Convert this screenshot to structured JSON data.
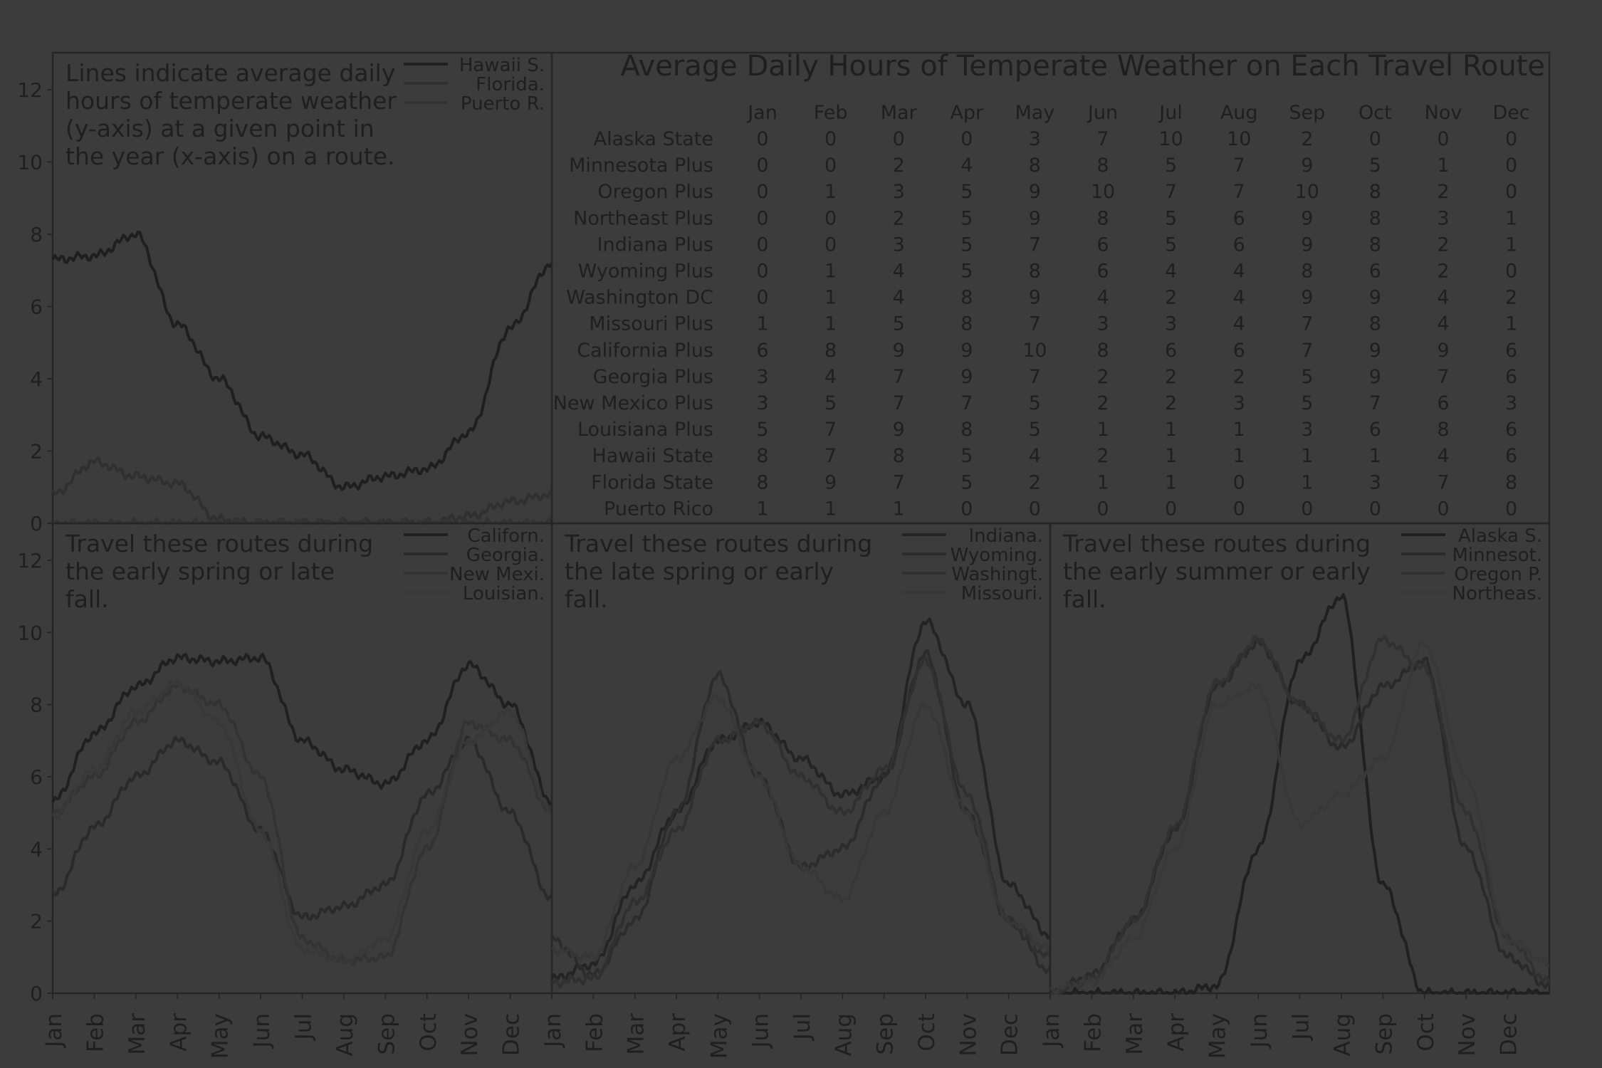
{
  "theme": {
    "background": "#3c3c3c",
    "line": "#262626",
    "text": "#1f1f1f",
    "grid": "#2a2a2a"
  },
  "months": [
    "Jan",
    "Feb",
    "Mar",
    "Apr",
    "May",
    "Jun",
    "Jul",
    "Aug",
    "Sep",
    "Oct",
    "Nov",
    "Dec"
  ],
  "chart_data": [
    {
      "type": "line",
      "panel": "top-left",
      "annotation": [
        "Lines indicate average daily",
        "hours of temperate weather",
        "(y-axis) at a given point in",
        "the year (x-axis) on a route."
      ],
      "ylim": [
        0,
        13
      ],
      "yticks": [
        0,
        2,
        4,
        6,
        8,
        10,
        12
      ],
      "legend_position": "top-right",
      "series": [
        {
          "name": "Hawaii S.",
          "color": "#1f1f1f",
          "monthly": [
            7.3,
            7.4,
            8.0,
            5.5,
            4.0,
            2.4,
            1.9,
            1.0,
            1.3,
            1.5,
            2.5,
            5.4,
            7.2
          ]
        },
        {
          "name": "Florida.",
          "color": "#303030",
          "monthly": [
            0.8,
            1.7,
            1.3,
            1.1,
            0.1,
            0.0,
            0.0,
            0.0,
            0.0,
            0.0,
            0.2,
            0.6,
            0.8
          ]
        },
        {
          "name": "Puerto R.",
          "color": "#333333",
          "monthly": [
            0.0,
            0.0,
            0.0,
            0.0,
            0.0,
            0.0,
            0.0,
            0.0,
            0.0,
            0.0,
            0.0,
            0.0,
            0.0
          ]
        }
      ]
    },
    {
      "type": "table",
      "panel": "top-right",
      "title": "Average Daily Hours of Temperate Weather on Each Travel Route",
      "columns": [
        "Jan",
        "Feb",
        "Mar",
        "Apr",
        "May",
        "Jun",
        "Jul",
        "Aug",
        "Sep",
        "Oct",
        "Nov",
        "Dec"
      ],
      "rows": [
        {
          "label": "Alaska State",
          "values": [
            0,
            0,
            0,
            0,
            3,
            7,
            10,
            10,
            2,
            0,
            0,
            0
          ]
        },
        {
          "label": "Minnesota Plus",
          "values": [
            0,
            0,
            2,
            4,
            8,
            8,
            5,
            7,
            9,
            5,
            1,
            0
          ]
        },
        {
          "label": "Oregon Plus",
          "values": [
            0,
            1,
            3,
            5,
            9,
            10,
            7,
            7,
            10,
            8,
            2,
            0
          ]
        },
        {
          "label": "Northeast Plus",
          "values": [
            0,
            0,
            2,
            5,
            9,
            8,
            5,
            6,
            9,
            8,
            3,
            1
          ]
        },
        {
          "label": "Indiana Plus",
          "values": [
            0,
            0,
            3,
            5,
            7,
            6,
            5,
            6,
            9,
            8,
            2,
            1
          ]
        },
        {
          "label": "Wyoming Plus",
          "values": [
            0,
            1,
            4,
            5,
            8,
            6,
            4,
            4,
            8,
            6,
            2,
            0
          ]
        },
        {
          "label": "Washington DC",
          "values": [
            0,
            1,
            4,
            8,
            9,
            4,
            2,
            4,
            9,
            9,
            4,
            2
          ]
        },
        {
          "label": "Missouri Plus",
          "values": [
            1,
            1,
            5,
            8,
            7,
            3,
            3,
            4,
            7,
            8,
            4,
            1
          ]
        },
        {
          "label": "California Plus",
          "values": [
            6,
            8,
            9,
            9,
            10,
            8,
            6,
            6,
            7,
            9,
            9,
            6
          ]
        },
        {
          "label": "Georgia Plus",
          "values": [
            3,
            4,
            7,
            9,
            7,
            2,
            2,
            2,
            5,
            9,
            7,
            6
          ]
        },
        {
          "label": "New Mexico Plus",
          "values": [
            3,
            5,
            7,
            7,
            5,
            2,
            2,
            3,
            5,
            7,
            6,
            3
          ]
        },
        {
          "label": "Louisiana Plus",
          "values": [
            5,
            7,
            9,
            8,
            5,
            1,
            1,
            1,
            3,
            6,
            8,
            6
          ]
        },
        {
          "label": "Hawaii State",
          "values": [
            8,
            7,
            8,
            5,
            4,
            2,
            1,
            1,
            1,
            1,
            4,
            6
          ]
        },
        {
          "label": "Florida State",
          "values": [
            8,
            9,
            7,
            5,
            2,
            1,
            1,
            0,
            1,
            3,
            7,
            8
          ]
        },
        {
          "label": "Puerto Rico",
          "values": [
            1,
            1,
            1,
            0,
            0,
            0,
            0,
            0,
            0,
            0,
            0,
            0
          ]
        }
      ]
    },
    {
      "type": "line",
      "panel": "bottom-left",
      "annotation": [
        "Travel these routes during",
        "the early spring or late",
        "fall."
      ],
      "ylim": [
        0,
        13
      ],
      "yticks": [
        0,
        2,
        4,
        6,
        8,
        10,
        12
      ],
      "legend_position": "top-right",
      "series": [
        {
          "name": "Californ.",
          "color": "#202020",
          "monthly": [
            5.3,
            7.2,
            8.5,
            9.3,
            9.2,
            9.3,
            7.0,
            6.2,
            5.8,
            7.0,
            9.1,
            8.0,
            5.3
          ]
        },
        {
          "name": "Georgia.",
          "color": "#2a2a2a",
          "monthly": [
            2.7,
            4.6,
            6.0,
            7.0,
            6.4,
            4.5,
            2.1,
            2.4,
            3.0,
            5.5,
            7.0,
            5.0,
            2.6
          ]
        },
        {
          "name": "New Mexi.",
          "color": "#333333",
          "monthly": [
            5.0,
            6.0,
            7.5,
            8.5,
            8.0,
            6.0,
            1.5,
            0.9,
            1.0,
            4.0,
            7.5,
            7.0,
            5.0
          ]
        },
        {
          "name": "Louisian.",
          "color": "#383838",
          "monthly": [
            4.9,
            6.2,
            7.8,
            8.6,
            7.5,
            4.5,
            1.2,
            0.9,
            1.5,
            4.5,
            7.0,
            7.8,
            5.0
          ]
        }
      ]
    },
    {
      "type": "line",
      "panel": "bottom-middle",
      "annotation": [
        "Travel these routes during",
        "the late spring or early",
        "fall."
      ],
      "ylim": [
        0,
        13
      ],
      "yticks": [
        0,
        2,
        4,
        6,
        8,
        10,
        12
      ],
      "legend_position": "top-right",
      "series": [
        {
          "name": "Indiana.",
          "color": "#242424",
          "monthly": [
            0.4,
            0.8,
            3.0,
            5.0,
            7.0,
            7.5,
            6.5,
            5.5,
            6.0,
            10.3,
            8.0,
            3.0,
            1.6
          ]
        },
        {
          "name": "Wyoming.",
          "color": "#2c2c2c",
          "monthly": [
            1.5,
            0.5,
            2.0,
            5.0,
            8.8,
            6.0,
            3.5,
            4.0,
            6.0,
            9.4,
            5.0,
            2.0,
            0.6
          ]
        },
        {
          "name": "Washingt.",
          "color": "#303030",
          "monthly": [
            0.3,
            0.4,
            2.5,
            4.5,
            7.0,
            7.5,
            6.0,
            5.0,
            6.2,
            9.2,
            5.5,
            2.0,
            1.0
          ]
        },
        {
          "name": "Missouri.",
          "color": "#373737",
          "monthly": [
            1.2,
            1.0,
            3.5,
            6.5,
            8.2,
            6.0,
            3.5,
            2.6,
            5.0,
            8.0,
            5.0,
            2.0,
            1.2
          ]
        }
      ]
    },
    {
      "type": "line",
      "panel": "bottom-right",
      "annotation": [
        "Travel these routes during",
        "the early summer or early",
        "fall."
      ],
      "ylim": [
        0,
        13
      ],
      "yticks": [
        0,
        2,
        4,
        6,
        8,
        10,
        12
      ],
      "legend_position": "top-right",
      "series": [
        {
          "name": "Alaska S.",
          "color": "#202020",
          "monthly": [
            0.0,
            0.0,
            0.0,
            0.0,
            0.2,
            4.0,
            9.2,
            11.0,
            3.0,
            0.0,
            0.0,
            0.0,
            0.0
          ]
        },
        {
          "name": "Minnesot.",
          "color": "#2a2a2a",
          "monthly": [
            0.0,
            0.5,
            2.0,
            4.5,
            8.5,
            9.7,
            8.0,
            6.8,
            8.5,
            9.2,
            4.0,
            1.0,
            0.2
          ]
        },
        {
          "name": "Oregon P.",
          "color": "#313131",
          "monthly": [
            0.0,
            0.4,
            2.0,
            4.6,
            8.6,
            9.8,
            8.0,
            7.0,
            9.8,
            9.0,
            5.0,
            1.5,
            0.3
          ]
        },
        {
          "name": "Northeas.",
          "color": "#383838",
          "monthly": [
            0.1,
            0.3,
            1.5,
            4.0,
            8.0,
            8.5,
            4.7,
            5.5,
            6.5,
            9.7,
            6.0,
            1.5,
            0.8
          ]
        }
      ]
    }
  ]
}
